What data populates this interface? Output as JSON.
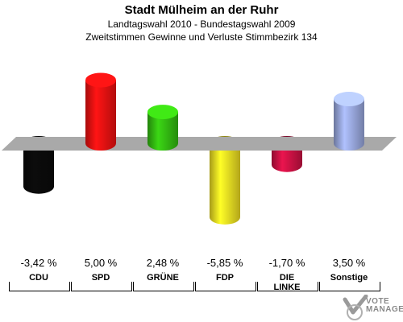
{
  "header": {
    "title": "Stadt Mülheim an der Ruhr",
    "subtitle": "Landtagswahl 2010 - Bundestagswahl 2009",
    "subtitle2": "Zweitstimmen Gewinne und Verluste Stimmbezirk 134"
  },
  "chart_data": {
    "type": "bar",
    "title": "Stadt Mülheim an der Ruhr",
    "subtitle": "Landtagswahl 2010 - Bundestagswahl 2009 / Zweitstimmen Gewinne und Verluste Stimmbezirk 134",
    "categories": [
      "CDU",
      "SPD",
      "GRÜNE",
      "FDP",
      "DIE LINKE",
      "Sonstige"
    ],
    "values": [
      -3.42,
      5.0,
      2.48,
      -5.85,
      -1.7,
      3.5
    ],
    "value_labels": [
      "-3,42 %",
      "5,00 %",
      "2,48 %",
      "-5,85 %",
      "-1,70 %",
      "3,50 %"
    ],
    "colors": [
      "#0a0a0a",
      "#ee1111",
      "#33bb11",
      "#eedd22",
      "#cc1144",
      "#99a8dd"
    ],
    "xlabel": "",
    "ylabel": "",
    "grid": false
  },
  "labels": {
    "values": [
      "-3,42 %",
      "5,00 %",
      "2,48 %",
      "-5,85 %",
      "-1,70 %",
      "3,50 %"
    ],
    "parties": [
      "CDU",
      "SPD",
      "GRÜNE",
      "FDP",
      "DIE\nLINKE",
      "Sonstige"
    ]
  },
  "logo": {
    "line1": "VOTE",
    "line2": "MANAGER"
  }
}
